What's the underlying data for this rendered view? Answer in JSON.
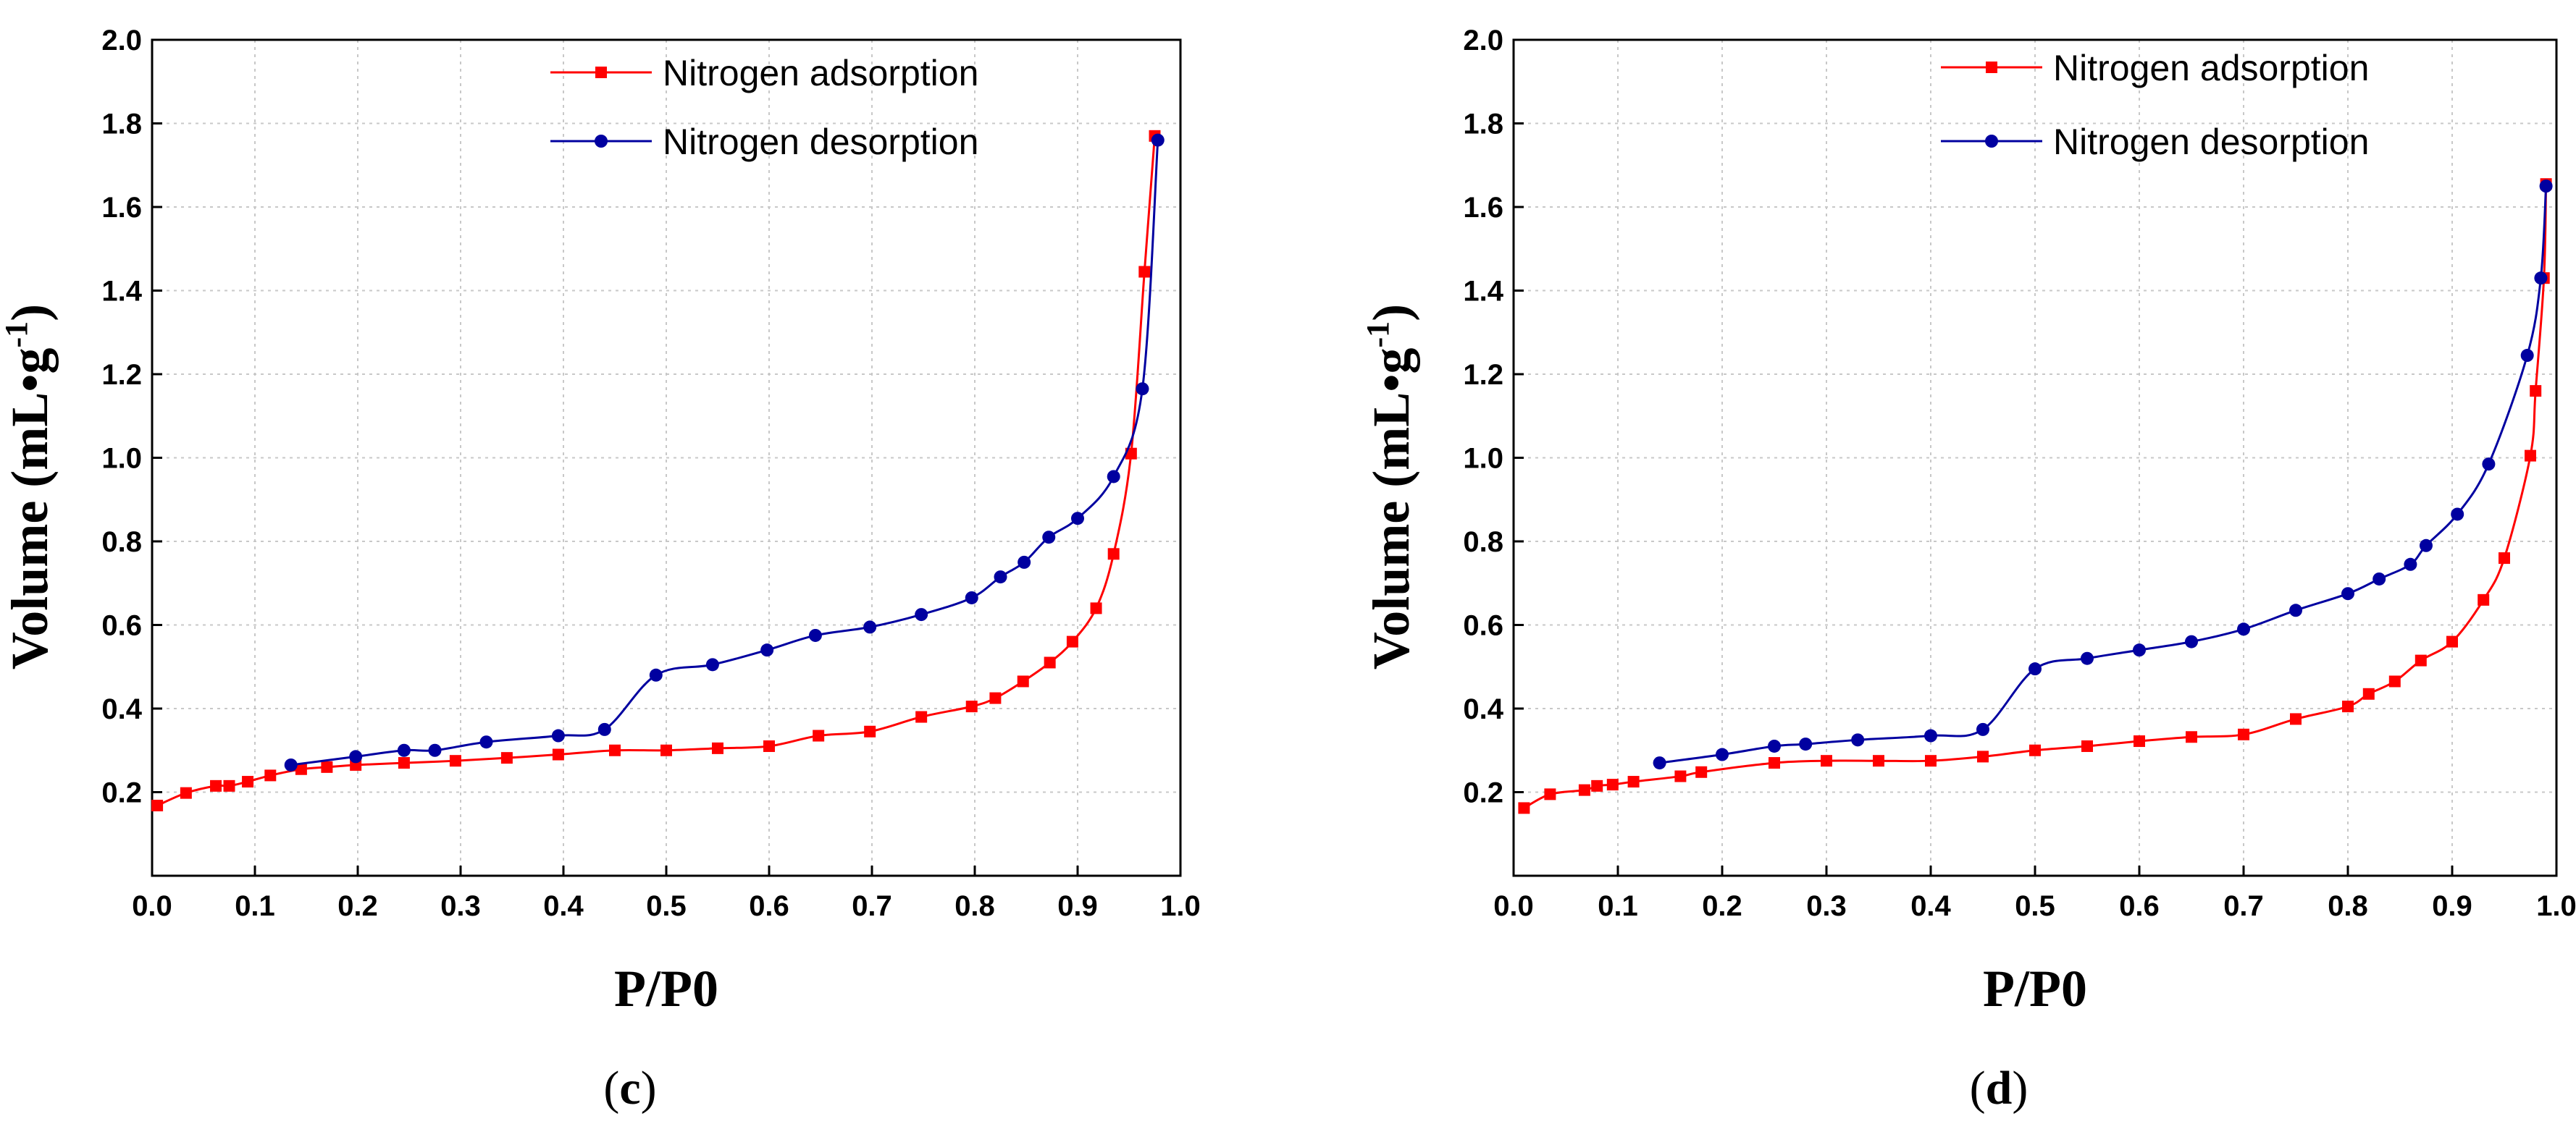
{
  "chart_data": [
    {
      "type": "line",
      "panel_label": {
        "open": "(",
        "letter": "c",
        "close": ")"
      },
      "xlabel": "P/P0",
      "ylabel": "Volume (mL•g",
      "ylabel_sup": "-1",
      "ylabel_close": ")",
      "xlim": [
        0.0,
        1.0
      ],
      "ylim": [
        0.0,
        2.0
      ],
      "x_ticks": [
        "0.0",
        "0.1",
        "0.2",
        "0.3",
        "0.4",
        "0.5",
        "0.6",
        "0.7",
        "0.8",
        "0.9",
        "1.0"
      ],
      "y_ticks": [
        "0.2",
        "0.4",
        "0.6",
        "0.8",
        "1.0",
        "1.2",
        "1.4",
        "1.6",
        "1.8",
        "2.0"
      ],
      "grid": true,
      "legend_position": "top-right",
      "series": [
        {
          "name": "Nitrogen adsorption",
          "color": "#ff0000",
          "marker": "square",
          "x": [
            0.005,
            0.033,
            0.062,
            0.075,
            0.093,
            0.115,
            0.145,
            0.17,
            0.198,
            0.245,
            0.295,
            0.345,
            0.395,
            0.45,
            0.5,
            0.55,
            0.6,
            0.648,
            0.698,
            0.748,
            0.797,
            0.82,
            0.847,
            0.873,
            0.895,
            0.918,
            0.935,
            0.952,
            0.965,
            0.975
          ],
          "y": [
            0.168,
            0.198,
            0.215,
            0.215,
            0.225,
            0.24,
            0.255,
            0.26,
            0.265,
            0.27,
            0.275,
            0.282,
            0.29,
            0.3,
            0.3,
            0.305,
            0.31,
            0.335,
            0.345,
            0.38,
            0.405,
            0.425,
            0.465,
            0.51,
            0.56,
            0.64,
            0.77,
            1.01,
            1.445,
            1.77
          ]
        },
        {
          "name": "Nitrogen desorption",
          "color": "#0000a0",
          "marker": "circle",
          "x": [
            0.135,
            0.198,
            0.245,
            0.275,
            0.325,
            0.395,
            0.44,
            0.49,
            0.545,
            0.598,
            0.645,
            0.698,
            0.748,
            0.797,
            0.825,
            0.848,
            0.872,
            0.9,
            0.935,
            0.963,
            0.978
          ],
          "y": [
            0.265,
            0.285,
            0.3,
            0.3,
            0.32,
            0.335,
            0.35,
            0.48,
            0.505,
            0.54,
            0.575,
            0.595,
            0.625,
            0.665,
            0.715,
            0.75,
            0.81,
            0.855,
            0.955,
            1.165,
            1.76
          ]
        }
      ]
    },
    {
      "type": "line",
      "panel_label": {
        "open": "(",
        "letter": "d",
        "close": ")"
      },
      "xlabel": "P/P0",
      "ylabel": "Volume (mL•g",
      "ylabel_sup": "-1",
      "ylabel_close": ")",
      "xlim": [
        0.0,
        1.0
      ],
      "ylim": [
        0.0,
        2.0
      ],
      "x_ticks": [
        "0.0",
        "0.1",
        "0.2",
        "0.3",
        "0.4",
        "0.5",
        "0.6",
        "0.7",
        "0.8",
        "0.9",
        "1.0"
      ],
      "y_ticks": [
        "0.2",
        "0.4",
        "0.6",
        "0.8",
        "1.0",
        "1.2",
        "1.4",
        "1.6",
        "1.8",
        "2.0"
      ],
      "grid": true,
      "legend_position": "top-right",
      "series": [
        {
          "name": "Nitrogen adsorption",
          "color": "#ff0000",
          "marker": "square",
          "x": [
            0.01,
            0.035,
            0.068,
            0.08,
            0.095,
            0.115,
            0.16,
            0.18,
            0.25,
            0.3,
            0.35,
            0.4,
            0.45,
            0.5,
            0.55,
            0.6,
            0.65,
            0.7,
            0.75,
            0.8,
            0.82,
            0.845,
            0.87,
            0.9,
            0.93,
            0.95,
            0.975,
            0.98,
            0.988,
            0.99
          ],
          "y": [
            0.162,
            0.195,
            0.205,
            0.215,
            0.218,
            0.225,
            0.238,
            0.248,
            0.27,
            0.275,
            0.275,
            0.275,
            0.285,
            0.3,
            0.31,
            0.322,
            0.332,
            0.338,
            0.375,
            0.405,
            0.435,
            0.465,
            0.515,
            0.56,
            0.66,
            0.76,
            1.005,
            1.16,
            1.43,
            1.655
          ]
        },
        {
          "name": "Nitrogen desorption",
          "color": "#0000a0",
          "marker": "circle",
          "x": [
            0.14,
            0.2,
            0.25,
            0.28,
            0.33,
            0.4,
            0.45,
            0.5,
            0.55,
            0.6,
            0.65,
            0.7,
            0.75,
            0.8,
            0.83,
            0.86,
            0.875,
            0.905,
            0.935,
            0.972,
            0.985,
            0.99
          ],
          "y": [
            0.27,
            0.29,
            0.31,
            0.315,
            0.325,
            0.335,
            0.35,
            0.495,
            0.52,
            0.54,
            0.56,
            0.59,
            0.635,
            0.675,
            0.71,
            0.745,
            0.79,
            0.865,
            0.985,
            1.245,
            1.43,
            1.65
          ]
        }
      ]
    }
  ]
}
